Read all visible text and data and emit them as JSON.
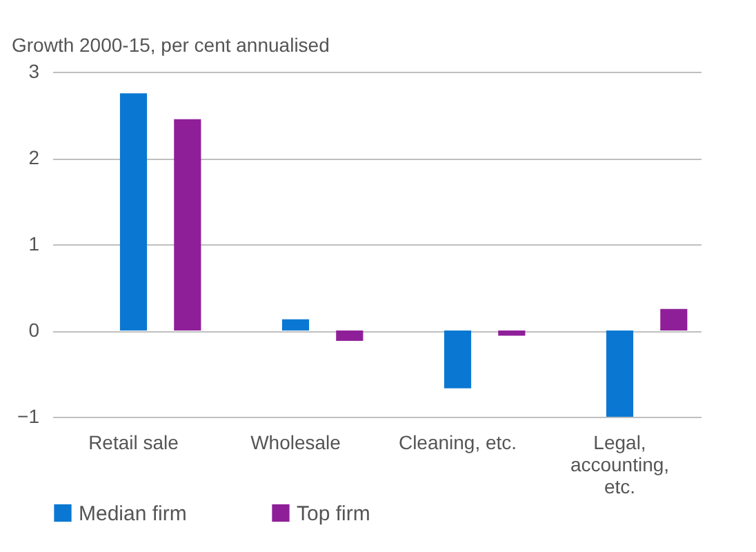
{
  "chart_data": {
    "type": "bar",
    "ylabel": "Growth 2000-15, per cent annualised",
    "categories": [
      "Retail sale",
      "Wholesale",
      "Cleaning, etc.",
      "Legal, accounting, etc."
    ],
    "series": [
      {
        "name": "Median firm",
        "color": "#0a78d2",
        "values": [
          2.75,
          0.13,
          -0.67,
          -1.0
        ]
      },
      {
        "name": "Top firm",
        "color": "#8f1f99",
        "values": [
          2.45,
          -0.12,
          -0.06,
          0.25
        ]
      }
    ],
    "ylim": [
      -1,
      3
    ],
    "yticks": [
      -1,
      0,
      1,
      2,
      3
    ],
    "grid": "y",
    "legend": "bottom"
  }
}
